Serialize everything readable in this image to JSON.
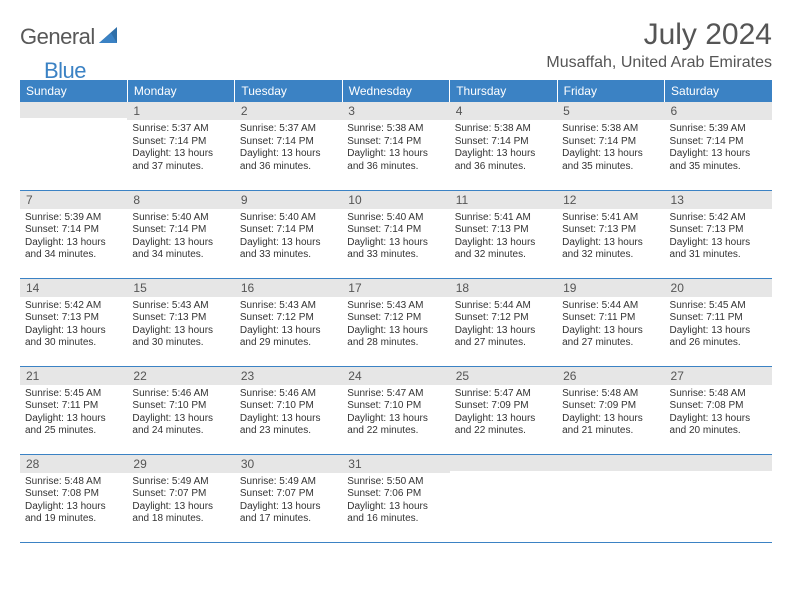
{
  "brand": {
    "part1": "General",
    "part2": "Blue"
  },
  "month_title": "July 2024",
  "location": "Musaffah, United Arab Emirates",
  "colors": {
    "header_bg": "#3b82c4",
    "header_text": "#ffffff",
    "daynum_bg": "#e6e6e6",
    "daynum_text": "#555555",
    "body_text": "#333333",
    "row_border": "#3b82c4",
    "page_bg": "#ffffff"
  },
  "typography": {
    "month_title_fontsize": 30,
    "location_fontsize": 16,
    "weekday_fontsize": 12,
    "daynum_fontsize": 12,
    "body_fontsize": 10
  },
  "layout": {
    "columns": 7,
    "rows": 5,
    "first_weekday": "Sunday"
  },
  "weekdays": [
    "Sunday",
    "Monday",
    "Tuesday",
    "Wednesday",
    "Thursday",
    "Friday",
    "Saturday"
  ],
  "weeks": [
    [
      {
        "day": "",
        "sunrise": "",
        "sunset": "",
        "daylight": ""
      },
      {
        "day": "1",
        "sunrise": "Sunrise: 5:37 AM",
        "sunset": "Sunset: 7:14 PM",
        "daylight": "Daylight: 13 hours and 37 minutes."
      },
      {
        "day": "2",
        "sunrise": "Sunrise: 5:37 AM",
        "sunset": "Sunset: 7:14 PM",
        "daylight": "Daylight: 13 hours and 36 minutes."
      },
      {
        "day": "3",
        "sunrise": "Sunrise: 5:38 AM",
        "sunset": "Sunset: 7:14 PM",
        "daylight": "Daylight: 13 hours and 36 minutes."
      },
      {
        "day": "4",
        "sunrise": "Sunrise: 5:38 AM",
        "sunset": "Sunset: 7:14 PM",
        "daylight": "Daylight: 13 hours and 36 minutes."
      },
      {
        "day": "5",
        "sunrise": "Sunrise: 5:38 AM",
        "sunset": "Sunset: 7:14 PM",
        "daylight": "Daylight: 13 hours and 35 minutes."
      },
      {
        "day": "6",
        "sunrise": "Sunrise: 5:39 AM",
        "sunset": "Sunset: 7:14 PM",
        "daylight": "Daylight: 13 hours and 35 minutes."
      }
    ],
    [
      {
        "day": "7",
        "sunrise": "Sunrise: 5:39 AM",
        "sunset": "Sunset: 7:14 PM",
        "daylight": "Daylight: 13 hours and 34 minutes."
      },
      {
        "day": "8",
        "sunrise": "Sunrise: 5:40 AM",
        "sunset": "Sunset: 7:14 PM",
        "daylight": "Daylight: 13 hours and 34 minutes."
      },
      {
        "day": "9",
        "sunrise": "Sunrise: 5:40 AM",
        "sunset": "Sunset: 7:14 PM",
        "daylight": "Daylight: 13 hours and 33 minutes."
      },
      {
        "day": "10",
        "sunrise": "Sunrise: 5:40 AM",
        "sunset": "Sunset: 7:14 PM",
        "daylight": "Daylight: 13 hours and 33 minutes."
      },
      {
        "day": "11",
        "sunrise": "Sunrise: 5:41 AM",
        "sunset": "Sunset: 7:13 PM",
        "daylight": "Daylight: 13 hours and 32 minutes."
      },
      {
        "day": "12",
        "sunrise": "Sunrise: 5:41 AM",
        "sunset": "Sunset: 7:13 PM",
        "daylight": "Daylight: 13 hours and 32 minutes."
      },
      {
        "day": "13",
        "sunrise": "Sunrise: 5:42 AM",
        "sunset": "Sunset: 7:13 PM",
        "daylight": "Daylight: 13 hours and 31 minutes."
      }
    ],
    [
      {
        "day": "14",
        "sunrise": "Sunrise: 5:42 AM",
        "sunset": "Sunset: 7:13 PM",
        "daylight": "Daylight: 13 hours and 30 minutes."
      },
      {
        "day": "15",
        "sunrise": "Sunrise: 5:43 AM",
        "sunset": "Sunset: 7:13 PM",
        "daylight": "Daylight: 13 hours and 30 minutes."
      },
      {
        "day": "16",
        "sunrise": "Sunrise: 5:43 AM",
        "sunset": "Sunset: 7:12 PM",
        "daylight": "Daylight: 13 hours and 29 minutes."
      },
      {
        "day": "17",
        "sunrise": "Sunrise: 5:43 AM",
        "sunset": "Sunset: 7:12 PM",
        "daylight": "Daylight: 13 hours and 28 minutes."
      },
      {
        "day": "18",
        "sunrise": "Sunrise: 5:44 AM",
        "sunset": "Sunset: 7:12 PM",
        "daylight": "Daylight: 13 hours and 27 minutes."
      },
      {
        "day": "19",
        "sunrise": "Sunrise: 5:44 AM",
        "sunset": "Sunset: 7:11 PM",
        "daylight": "Daylight: 13 hours and 27 minutes."
      },
      {
        "day": "20",
        "sunrise": "Sunrise: 5:45 AM",
        "sunset": "Sunset: 7:11 PM",
        "daylight": "Daylight: 13 hours and 26 minutes."
      }
    ],
    [
      {
        "day": "21",
        "sunrise": "Sunrise: 5:45 AM",
        "sunset": "Sunset: 7:11 PM",
        "daylight": "Daylight: 13 hours and 25 minutes."
      },
      {
        "day": "22",
        "sunrise": "Sunrise: 5:46 AM",
        "sunset": "Sunset: 7:10 PM",
        "daylight": "Daylight: 13 hours and 24 minutes."
      },
      {
        "day": "23",
        "sunrise": "Sunrise: 5:46 AM",
        "sunset": "Sunset: 7:10 PM",
        "daylight": "Daylight: 13 hours and 23 minutes."
      },
      {
        "day": "24",
        "sunrise": "Sunrise: 5:47 AM",
        "sunset": "Sunset: 7:10 PM",
        "daylight": "Daylight: 13 hours and 22 minutes."
      },
      {
        "day": "25",
        "sunrise": "Sunrise: 5:47 AM",
        "sunset": "Sunset: 7:09 PM",
        "daylight": "Daylight: 13 hours and 22 minutes."
      },
      {
        "day": "26",
        "sunrise": "Sunrise: 5:48 AM",
        "sunset": "Sunset: 7:09 PM",
        "daylight": "Daylight: 13 hours and 21 minutes."
      },
      {
        "day": "27",
        "sunrise": "Sunrise: 5:48 AM",
        "sunset": "Sunset: 7:08 PM",
        "daylight": "Daylight: 13 hours and 20 minutes."
      }
    ],
    [
      {
        "day": "28",
        "sunrise": "Sunrise: 5:48 AM",
        "sunset": "Sunset: 7:08 PM",
        "daylight": "Daylight: 13 hours and 19 minutes."
      },
      {
        "day": "29",
        "sunrise": "Sunrise: 5:49 AM",
        "sunset": "Sunset: 7:07 PM",
        "daylight": "Daylight: 13 hours and 18 minutes."
      },
      {
        "day": "30",
        "sunrise": "Sunrise: 5:49 AM",
        "sunset": "Sunset: 7:07 PM",
        "daylight": "Daylight: 13 hours and 17 minutes."
      },
      {
        "day": "31",
        "sunrise": "Sunrise: 5:50 AM",
        "sunset": "Sunset: 7:06 PM",
        "daylight": "Daylight: 13 hours and 16 minutes."
      },
      {
        "day": "",
        "sunrise": "",
        "sunset": "",
        "daylight": ""
      },
      {
        "day": "",
        "sunrise": "",
        "sunset": "",
        "daylight": ""
      },
      {
        "day": "",
        "sunrise": "",
        "sunset": "",
        "daylight": ""
      }
    ]
  ]
}
